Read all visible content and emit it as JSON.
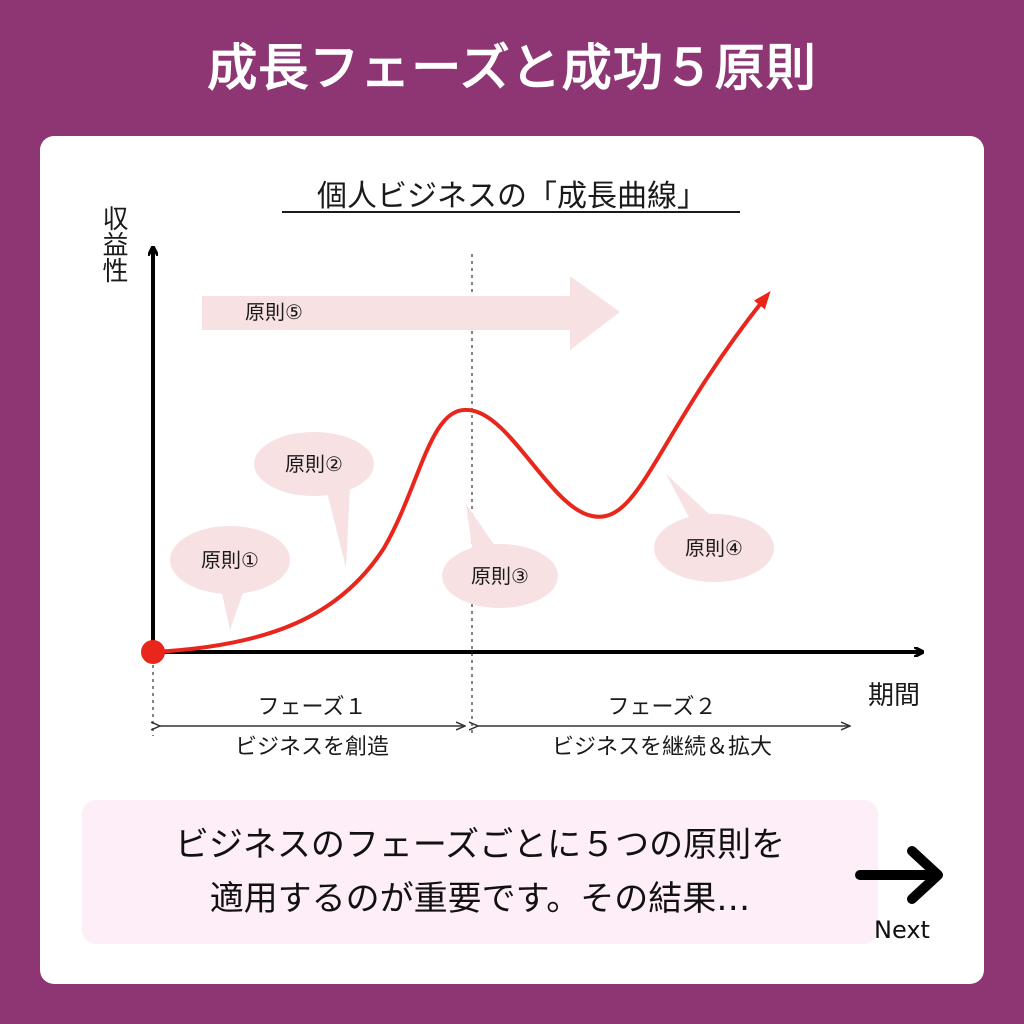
{
  "page": {
    "title": "成長フェーズと成功５原則"
  },
  "diagram": {
    "title": "個人ビジネスの「成長曲線」",
    "y_axis_label": "収益性",
    "x_axis_label": "期間",
    "principles": {
      "p1": "原則①",
      "p2": "原則②",
      "p3": "原則③",
      "p4": "原則④",
      "p5": "原則⑤"
    },
    "phases": [
      {
        "name": "フェーズ１",
        "description": "ビジネスを創造"
      },
      {
        "name": "フェーズ２",
        "description": "ビジネスを継続＆拡大"
      }
    ],
    "colors": {
      "curve": "#e8261c",
      "bubble": "#f7e1e3",
      "background": "#8e3674",
      "message_box": "#fdeef8"
    }
  },
  "message": {
    "line1": "ビジネスのフェーズごとに５つの原則を",
    "line2": "適用するのが重要です。その結果…"
  },
  "next": {
    "label": "Next",
    "icon": "arrow-right-icon"
  }
}
